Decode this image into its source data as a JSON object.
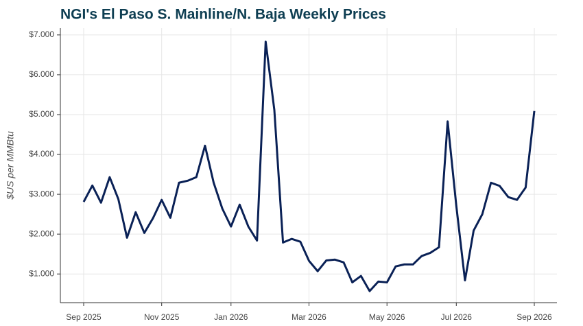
{
  "chart_data": {
    "type": "line",
    "title": "NGI's El Paso S. Mainline/N. Baja Weekly Prices",
    "y_label": "$US per MMBtu",
    "categories": [
      "Sep 2025",
      null,
      null,
      null,
      null,
      null,
      null,
      null,
      null,
      "Nov 2025",
      null,
      null,
      null,
      null,
      null,
      null,
      null,
      "Jan 2026",
      null,
      null,
      null,
      null,
      null,
      null,
      null,
      null,
      "Mar 2026",
      null,
      null,
      null,
      null,
      null,
      null,
      null,
      null,
      "May 2026",
      null,
      null,
      null,
      null,
      null,
      null,
      null,
      "Jul 2026",
      null,
      null,
      null,
      null,
      null,
      null,
      null,
      null,
      "Sep 2026"
    ],
    "series": [
      {
        "name": "El Paso S. Mainline/N. Baja",
        "color": "#0a2156",
        "values": [
          2.81,
          3.22,
          2.79,
          3.43,
          2.88,
          1.91,
          2.55,
          2.03,
          2.4,
          2.86,
          2.41,
          3.29,
          3.34,
          3.43,
          4.22,
          3.29,
          2.64,
          2.19,
          2.74,
          2.19,
          1.84,
          6.83,
          5.12,
          1.79,
          1.88,
          1.81,
          1.33,
          1.07,
          1.34,
          1.36,
          1.29,
          0.79,
          0.95,
          0.57,
          0.81,
          0.79,
          1.19,
          1.24,
          1.24,
          1.45,
          1.53,
          1.67,
          4.83,
          2.71,
          0.84,
          2.09,
          2.5,
          3.29,
          3.21,
          2.93,
          2.86,
          3.17,
          5.09
        ]
      }
    ],
    "ylim": [
      0.28,
      7.17
    ],
    "yticks": [
      {
        "value": 1,
        "label": "$1.000"
      },
      {
        "value": 2,
        "label": "$2.000"
      },
      {
        "value": 3,
        "label": "$3.000"
      },
      {
        "value": 4,
        "label": "$4.000"
      },
      {
        "value": 5,
        "label": "$5.000"
      },
      {
        "value": 6,
        "label": "$6.000"
      },
      {
        "value": 7,
        "label": "$7.000"
      }
    ],
    "grid": true
  }
}
